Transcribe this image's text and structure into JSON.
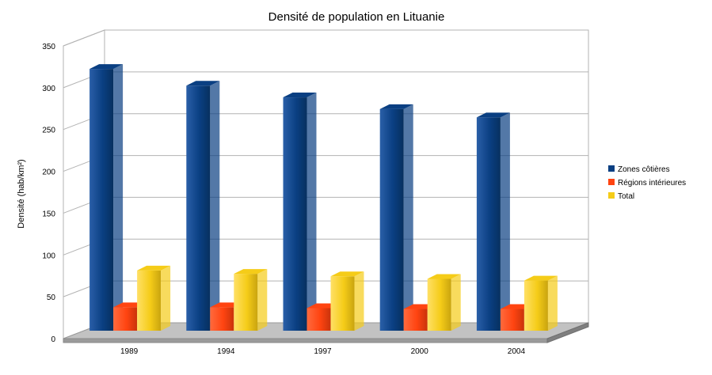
{
  "chart_data": {
    "type": "bar",
    "title": "Densité de population en Lituanie",
    "xlabel": "",
    "ylabel": "Densité (hab/km²)",
    "categories": [
      "1989",
      "1994",
      "1997",
      "2000",
      "2004"
    ],
    "series": [
      {
        "name": "Zones côtières",
        "values": [
          313,
          293,
          279,
          265,
          255
        ],
        "color": "#0a3f82"
      },
      {
        "name": "Régions intérieures",
        "values": [
          28,
          28,
          27,
          26,
          26
        ],
        "color": "#ff4411"
      },
      {
        "name": "Total",
        "values": [
          72,
          68,
          65,
          62,
          60
        ],
        "color": "#f5cc18"
      }
    ],
    "ylim": [
      0,
      350
    ],
    "yticks": [
      0,
      50,
      100,
      150,
      200,
      250,
      300,
      350
    ],
    "grid": true,
    "legend_position": "right",
    "style": "3d"
  }
}
